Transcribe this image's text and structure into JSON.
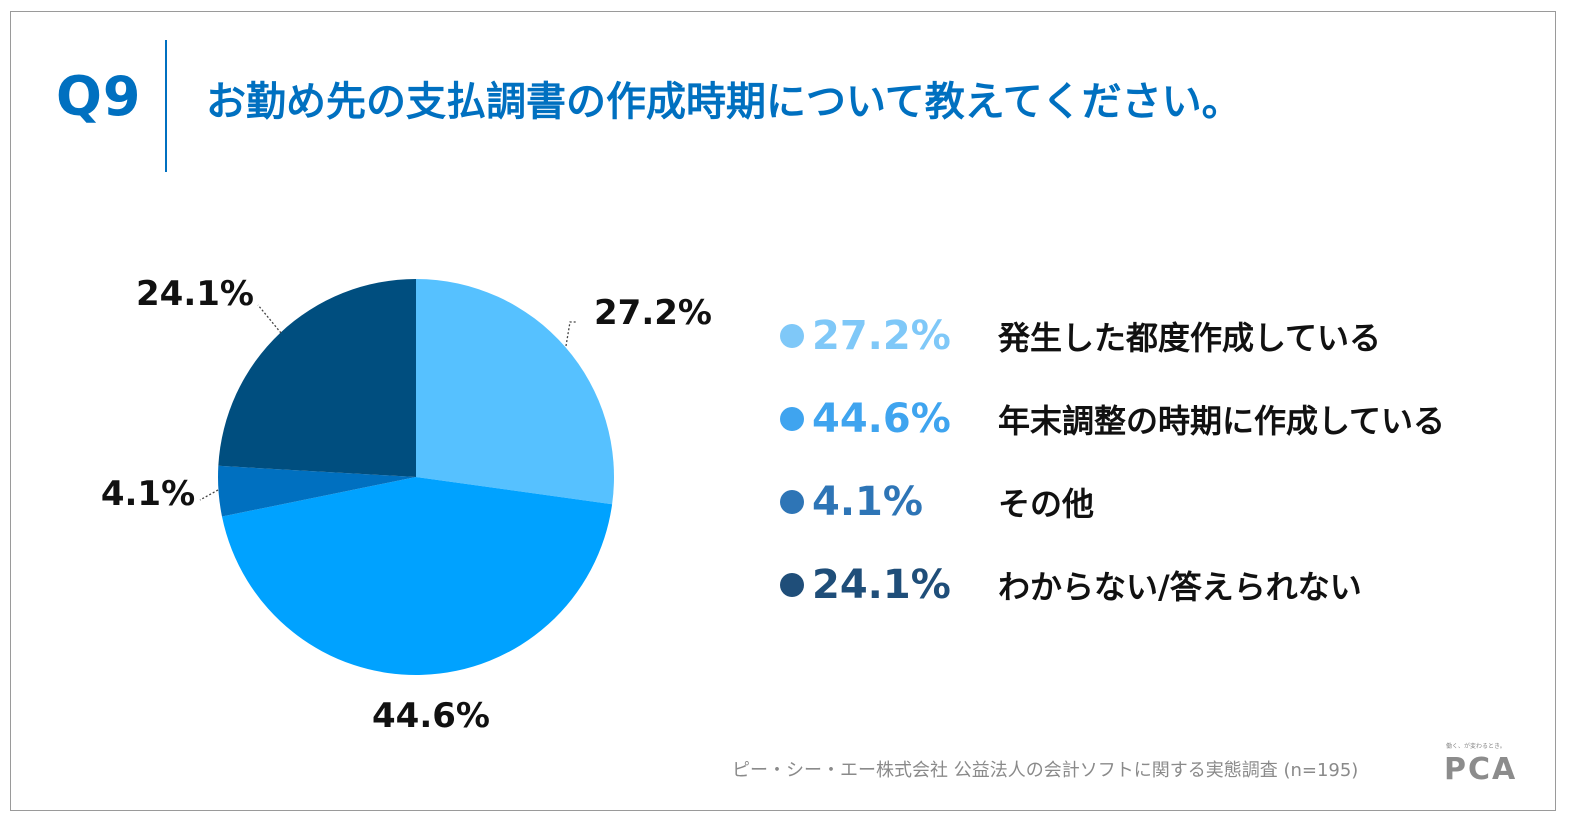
{
  "header": {
    "question": "Q9",
    "title": "お勤め先の支払調書の作成時期について教えてください。"
  },
  "chart_data": {
    "type": "pie",
    "title": "お勤め先の支払調書の作成時期について教えてください。",
    "start_angle_deg": 0,
    "direction": "clockwise",
    "slices": [
      {
        "label": "発生した都度作成している",
        "value": 27.2,
        "display": "27.2%",
        "color": "#56c1ff"
      },
      {
        "label": "年末調整の時期に作成している",
        "value": 44.6,
        "display": "44.6%",
        "color": "#00a2ff"
      },
      {
        "label": "その他",
        "value": 4.1,
        "display": "4.1%",
        "color": "#0070c0"
      },
      {
        "label": "わからない/答えられない",
        "value": 24.1,
        "display": "24.1%",
        "color": "#004e7f"
      }
    ]
  },
  "legend": {
    "items": [
      {
        "value": "27.2%",
        "label": "発生した都度作成している",
        "dot_color": "#7fc8f8",
        "text_color": "#7fc8f8"
      },
      {
        "value": "44.6%",
        "label": "年末調整の時期に作成している",
        "dot_color": "#3fa4ef",
        "text_color": "#3fa4ef"
      },
      {
        "value": "4.1%",
        "label": "その他",
        "dot_color": "#2e75b6",
        "text_color": "#2e75b6"
      },
      {
        "value": "24.1%",
        "label": "わからない/答えられない",
        "dot_color": "#1f4e79",
        "text_color": "#1f4e79"
      }
    ]
  },
  "footer": {
    "source": "ピー・シー・エー株式会社 公益法人の会計ソフトに関する実態調査 (n=195)"
  },
  "logo": {
    "tagline": "働く、が変わるとき。",
    "mark": "PCA"
  }
}
